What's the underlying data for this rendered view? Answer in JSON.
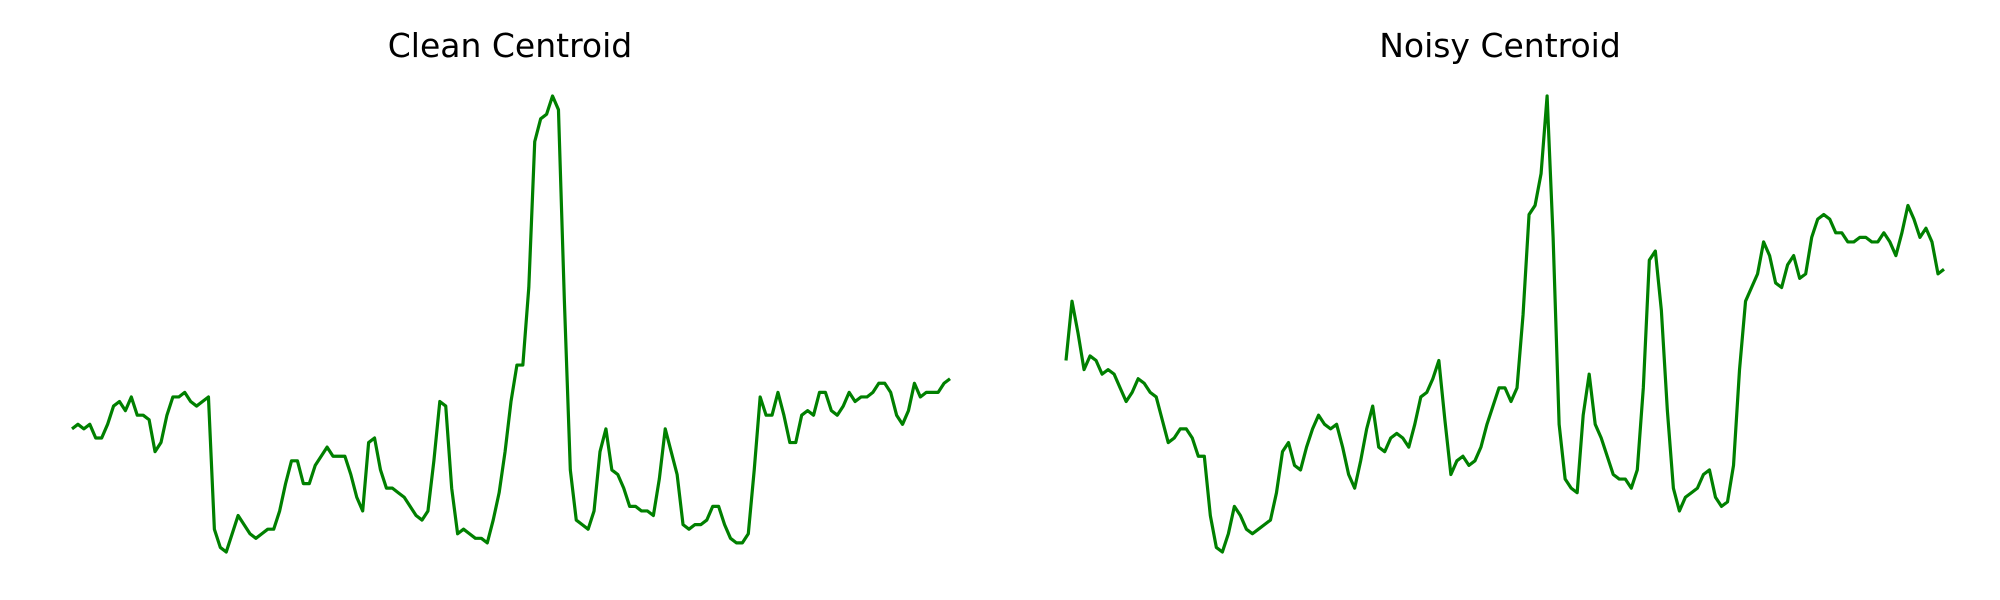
{
  "figure": {
    "background": "#ffffff"
  },
  "chart_data": [
    {
      "type": "line",
      "title": "Clean Centroid",
      "xlabel": "",
      "ylabel": "",
      "axes_visible": false,
      "grid": false,
      "legend": "none",
      "color": "#008000",
      "ylim": [
        0,
        1
      ],
      "series": [
        {
          "values": [
            0.27,
            0.28,
            0.27,
            0.28,
            0.25,
            0.25,
            0.28,
            0.32,
            0.33,
            0.31,
            0.34,
            0.3,
            0.3,
            0.29,
            0.22,
            0.24,
            0.3,
            0.34,
            0.34,
            0.35,
            0.33,
            0.32,
            0.33,
            0.34,
            0.05,
            0.01,
            0.0,
            0.04,
            0.08,
            0.06,
            0.04,
            0.03,
            0.04,
            0.05,
            0.05,
            0.09,
            0.15,
            0.2,
            0.2,
            0.15,
            0.15,
            0.19,
            0.21,
            0.23,
            0.21,
            0.21,
            0.21,
            0.17,
            0.12,
            0.09,
            0.24,
            0.25,
            0.18,
            0.14,
            0.14,
            0.13,
            0.12,
            0.1,
            0.08,
            0.07,
            0.09,
            0.2,
            0.33,
            0.32,
            0.14,
            0.04,
            0.05,
            0.04,
            0.03,
            0.03,
            0.02,
            0.07,
            0.13,
            0.22,
            0.33,
            0.41,
            0.41,
            0.58,
            0.9,
            0.95,
            0.96,
            1.0,
            0.97,
            0.55,
            0.18,
            0.07,
            0.06,
            0.05,
            0.09,
            0.22,
            0.27,
            0.18,
            0.17,
            0.14,
            0.1,
            0.1,
            0.09,
            0.09,
            0.08,
            0.16,
            0.27,
            0.22,
            0.17,
            0.06,
            0.05,
            0.06,
            0.06,
            0.07,
            0.1,
            0.1,
            0.06,
            0.03,
            0.02,
            0.02,
            0.04,
            0.18,
            0.34,
            0.3,
            0.3,
            0.35,
            0.3,
            0.24,
            0.24,
            0.3,
            0.31,
            0.3,
            0.35,
            0.35,
            0.31,
            0.3,
            0.32,
            0.35,
            0.33,
            0.34,
            0.34,
            0.35,
            0.37,
            0.37,
            0.35,
            0.3,
            0.28,
            0.31,
            0.37,
            0.34,
            0.35,
            0.35,
            0.35,
            0.37,
            0.38
          ]
        }
      ]
    },
    {
      "type": "line",
      "title": "Noisy Centroid",
      "xlabel": "",
      "ylabel": "",
      "axes_visible": false,
      "grid": false,
      "legend": "none",
      "color": "#008000",
      "ylim": [
        0,
        1
      ],
      "series": [
        {
          "values": [
            0.42,
            0.55,
            0.48,
            0.4,
            0.43,
            0.42,
            0.39,
            0.4,
            0.39,
            0.36,
            0.33,
            0.35,
            0.38,
            0.37,
            0.35,
            0.34,
            0.29,
            0.24,
            0.25,
            0.27,
            0.27,
            0.25,
            0.21,
            0.21,
            0.08,
            0.01,
            0.0,
            0.04,
            0.1,
            0.08,
            0.05,
            0.04,
            0.05,
            0.06,
            0.07,
            0.13,
            0.22,
            0.24,
            0.19,
            0.18,
            0.23,
            0.27,
            0.3,
            0.28,
            0.27,
            0.28,
            0.23,
            0.17,
            0.14,
            0.2,
            0.27,
            0.32,
            0.23,
            0.22,
            0.25,
            0.26,
            0.25,
            0.23,
            0.28,
            0.34,
            0.35,
            0.38,
            0.42,
            0.29,
            0.17,
            0.2,
            0.21,
            0.19,
            0.2,
            0.23,
            0.28,
            0.32,
            0.36,
            0.36,
            0.33,
            0.36,
            0.52,
            0.74,
            0.76,
            0.83,
            1.0,
            0.69,
            0.28,
            0.16,
            0.14,
            0.13,
            0.3,
            0.39,
            0.28,
            0.25,
            0.21,
            0.17,
            0.16,
            0.16,
            0.14,
            0.18,
            0.36,
            0.64,
            0.66,
            0.53,
            0.31,
            0.14,
            0.09,
            0.12,
            0.13,
            0.14,
            0.17,
            0.18,
            0.12,
            0.1,
            0.11,
            0.19,
            0.4,
            0.55,
            0.58,
            0.61,
            0.68,
            0.65,
            0.59,
            0.58,
            0.63,
            0.65,
            0.6,
            0.61,
            0.69,
            0.73,
            0.74,
            0.73,
            0.7,
            0.7,
            0.68,
            0.68,
            0.69,
            0.69,
            0.68,
            0.68,
            0.7,
            0.68,
            0.65,
            0.7,
            0.76,
            0.73,
            0.69,
            0.71,
            0.68,
            0.61,
            0.62
          ]
        }
      ]
    }
  ]
}
